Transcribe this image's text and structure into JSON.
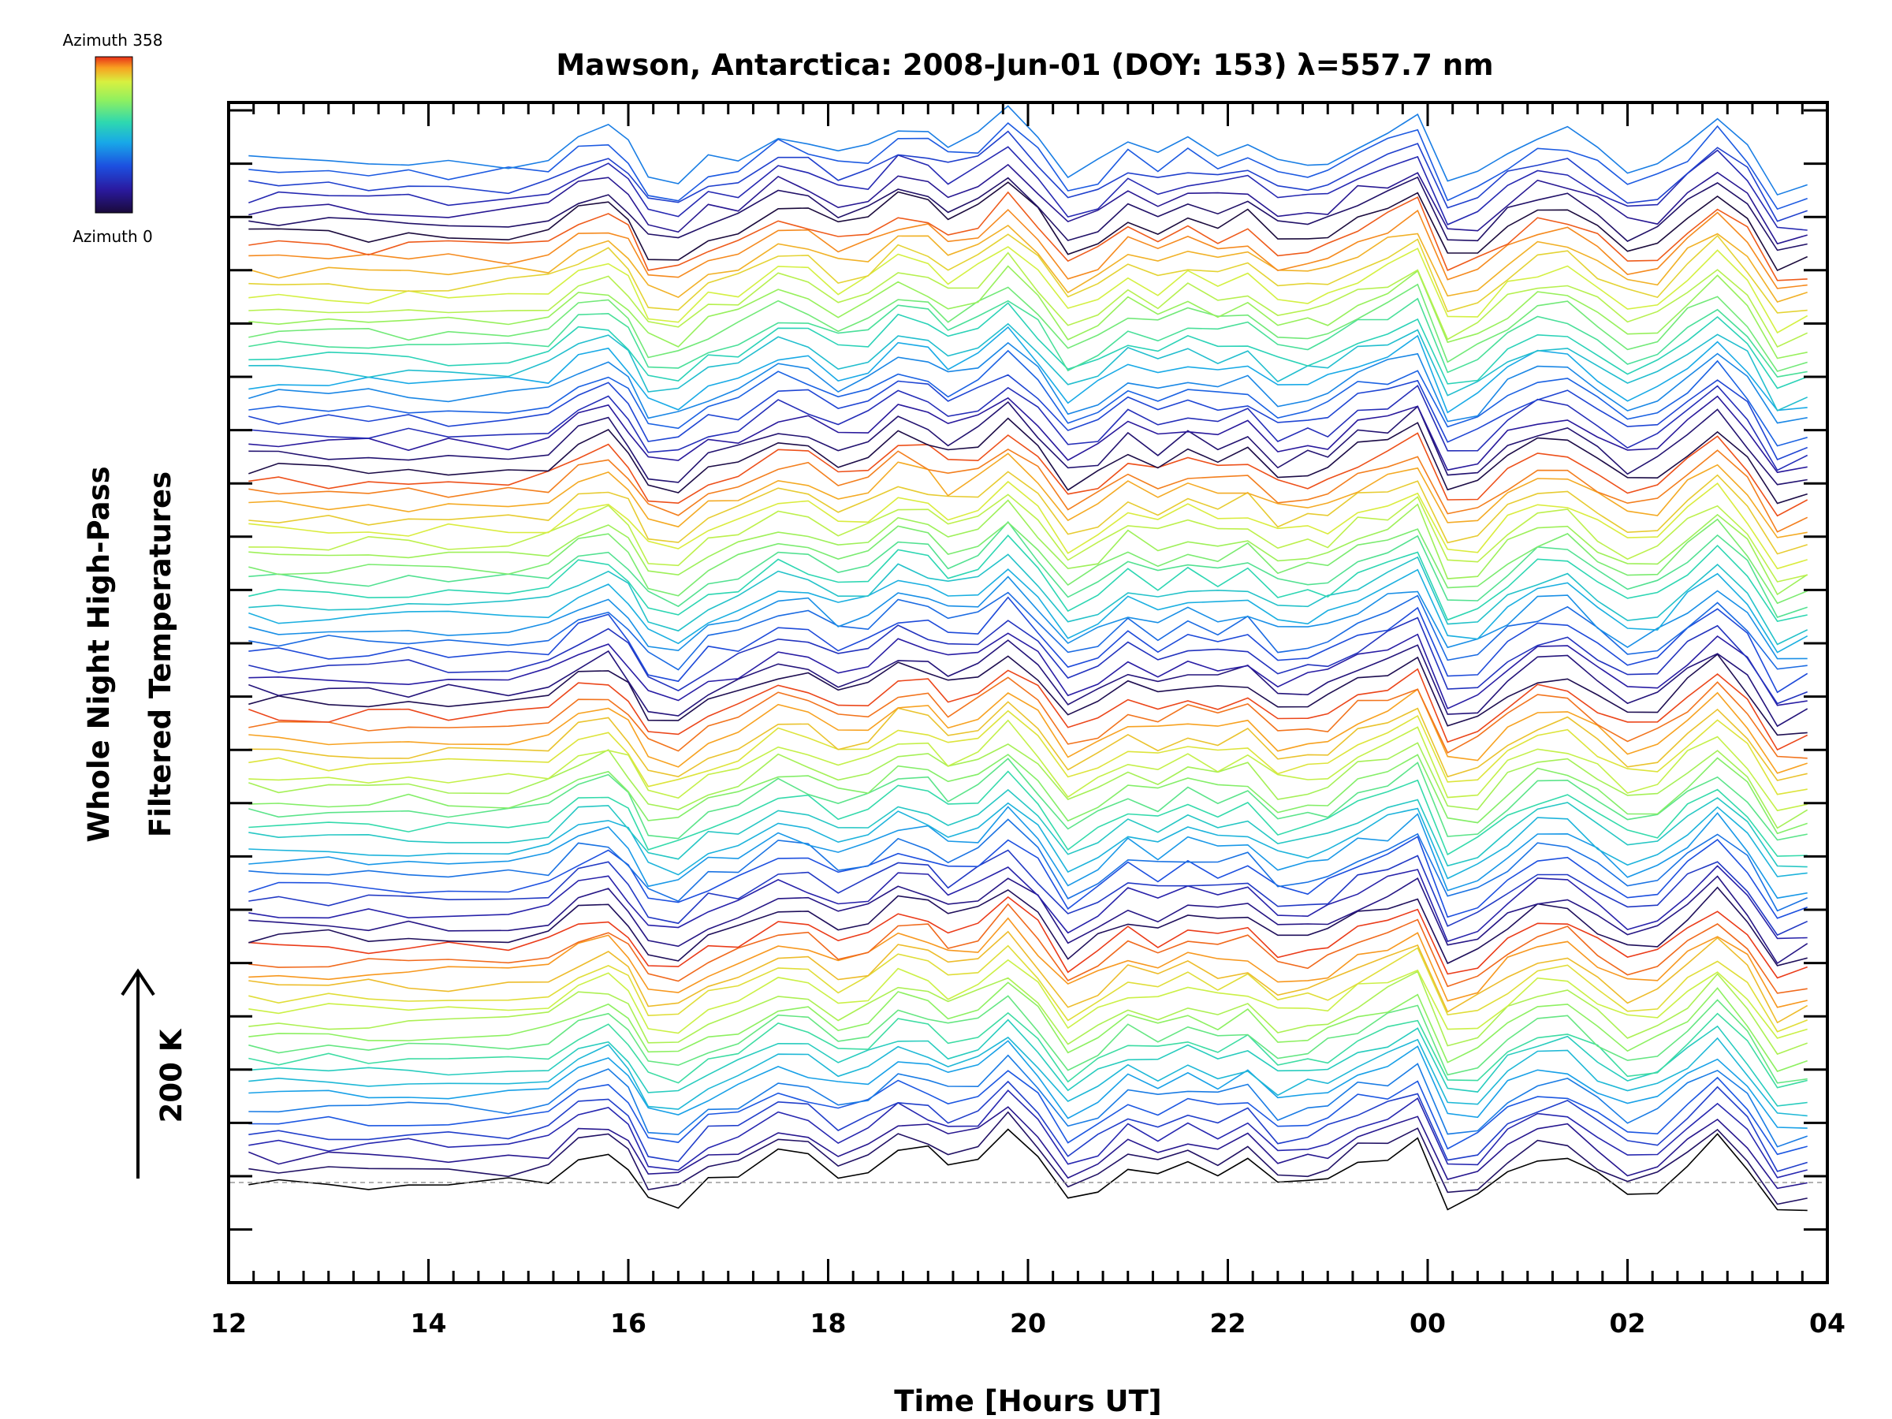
{
  "chart_data": {
    "type": "line",
    "title": "Mawson, Antarctica: 2008-Jun-01 (DOY: 153) λ=557.7 nm",
    "xlabel": "Time [Hours UT]",
    "ylabel_line1": "Whole Night High-Pass",
    "ylabel_line2": "Filtered Temperatures",
    "scale_bar_label": "200 K",
    "x_ticks": [
      "12",
      "14",
      "16",
      "18",
      "20",
      "22",
      "00",
      "02",
      "04"
    ],
    "xlim": [
      12,
      28
    ],
    "colorbar": {
      "label_top": "Azimuth 358",
      "label_bottom": "Azimuth 0",
      "range": [
        0,
        358
      ]
    },
    "grid": false,
    "n_series": 84,
    "series_note": "stacked, vertically offset traces colored by azimuth",
    "reference_series": {
      "name": "",
      "color": "#000000",
      "x": [
        12.2,
        12.5,
        13.0,
        13.4,
        13.8,
        14.2,
        14.8,
        15.2,
        15.5,
        15.8,
        16.0,
        16.2,
        16.5,
        16.8,
        17.1,
        17.5,
        17.8,
        18.1,
        18.4,
        18.7,
        19.0,
        19.2,
        19.5,
        19.8,
        20.1,
        20.4,
        20.7,
        21.0,
        21.3,
        21.6,
        21.9,
        22.2,
        22.5,
        22.8,
        23.0,
        23.3,
        23.6,
        23.9,
        24.2,
        24.5,
        24.8,
        25.1,
        25.4,
        25.7,
        26.0,
        26.3,
        26.6,
        26.9,
        27.2,
        27.5,
        27.8
      ]
    }
  },
  "colors": {
    "axis": "#000000",
    "baseline": "#999999",
    "colormap": [
      "#1a0a3a",
      "#2a1aa0",
      "#1c50e0",
      "#18a8e8",
      "#2ed8b0",
      "#8ef060",
      "#d8f040",
      "#f8a020",
      "#e83018"
    ]
  }
}
